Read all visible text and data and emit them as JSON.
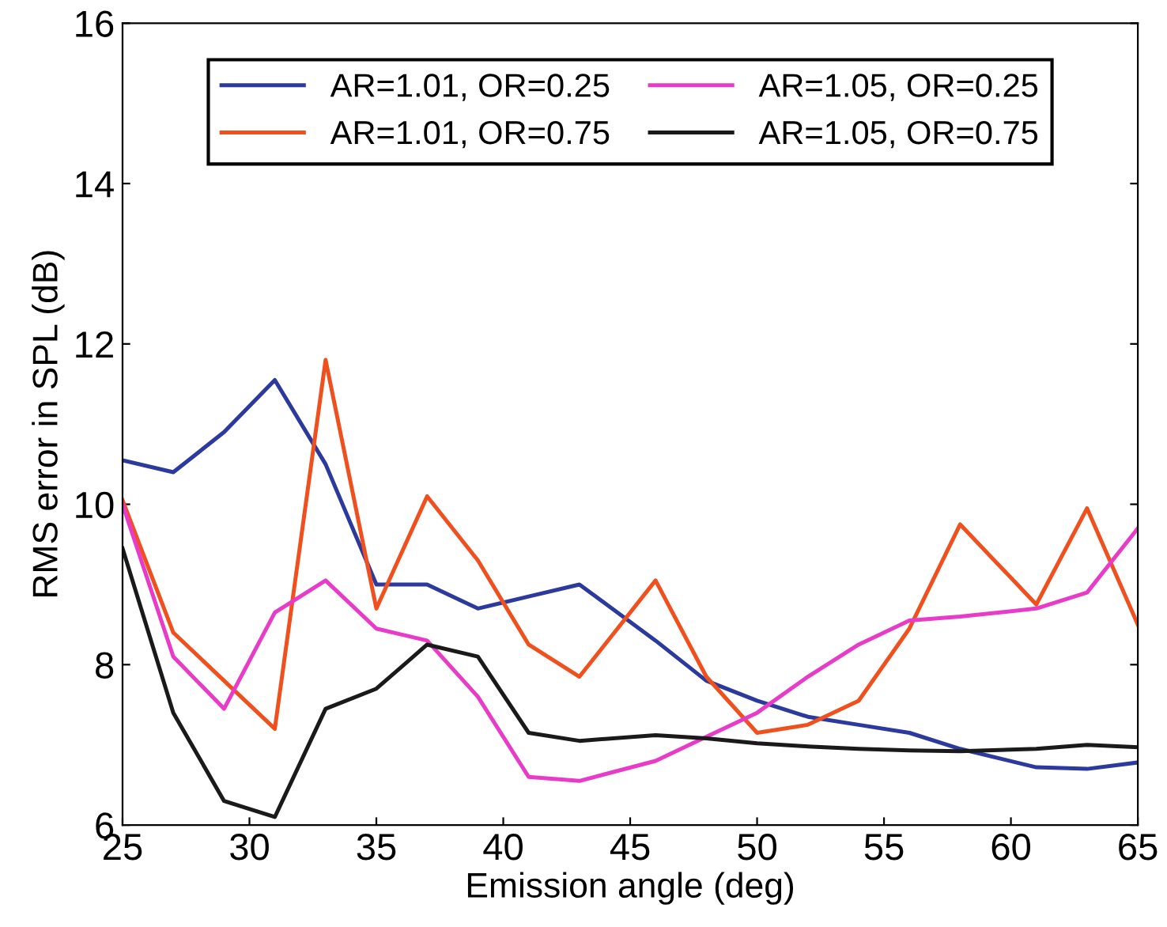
{
  "chart_data": {
    "type": "line",
    "xlabel": "Emission angle (deg)",
    "ylabel": "RMS error in SPL (dB)",
    "x": [
      25,
      27,
      29,
      31,
      33,
      35,
      37,
      39,
      41,
      43,
      46,
      48,
      50,
      52,
      54,
      56,
      58,
      61,
      63,
      65
    ],
    "series": [
      {
        "name": "AR=1.01, OR=0.25",
        "color": "#2b3a9c",
        "values": [
          10.55,
          10.4,
          10.9,
          11.55,
          10.5,
          9.0,
          9.0,
          8.7,
          8.85,
          9.0,
          8.3,
          7.8,
          7.55,
          7.35,
          7.25,
          7.15,
          6.95,
          6.72,
          6.7,
          6.78
        ]
      },
      {
        "name": "AR=1.01, OR=0.75",
        "color": "#f0501e",
        "values": [
          10.05,
          8.4,
          7.8,
          7.2,
          11.8,
          8.7,
          10.1,
          9.3,
          8.25,
          7.85,
          9.05,
          7.85,
          7.15,
          7.25,
          7.55,
          8.45,
          9.75,
          8.75,
          9.95,
          8.5
        ]
      },
      {
        "name": "AR=1.05, OR=0.25",
        "color": "#e83cc8",
        "values": [
          10.0,
          8.1,
          7.45,
          8.65,
          9.05,
          8.45,
          8.3,
          7.6,
          6.6,
          6.55,
          6.8,
          7.1,
          7.4,
          7.85,
          8.25,
          8.55,
          8.6,
          8.7,
          8.9,
          9.7
        ]
      },
      {
        "name": "AR=1.05, OR=0.75",
        "color": "#1a1a1a",
        "values": [
          9.45,
          7.4,
          6.3,
          6.1,
          7.45,
          7.7,
          8.25,
          8.1,
          7.15,
          7.05,
          7.12,
          7.08,
          7.02,
          6.98,
          6.95,
          6.93,
          6.92,
          6.95,
          7.0,
          6.97
        ]
      }
    ],
    "xlim": [
      25,
      65
    ],
    "ylim": [
      6,
      16
    ],
    "xticks": [
      25,
      30,
      35,
      40,
      45,
      50,
      55,
      60,
      65
    ],
    "yticks": [
      6,
      8,
      10,
      12,
      14,
      16
    ],
    "grid": false,
    "legend": "top",
    "marker": "none",
    "line_style": "solid"
  }
}
